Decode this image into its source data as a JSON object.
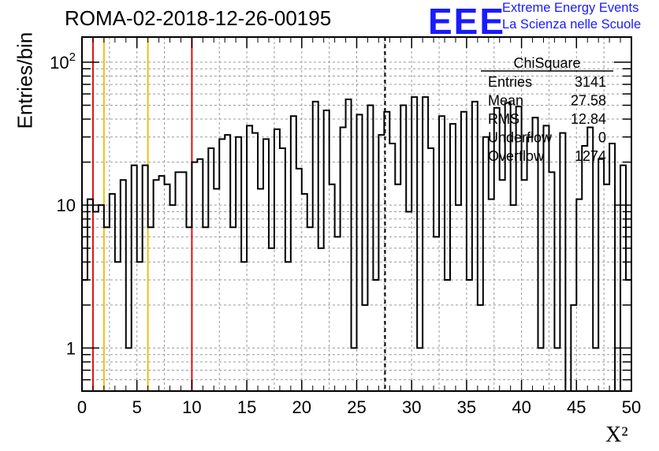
{
  "header": {
    "title": "ROMA-02-2018-12-26-00195",
    "logo_mark": "EEE",
    "logo_line1": "Extreme Energy Events",
    "logo_line2": "La Scienza nelle Scuole"
  },
  "stats": {
    "title": "ChiSquare",
    "rows": [
      {
        "label": "Entries",
        "value": "3141"
      },
      {
        "label": "Mean",
        "value": "27.58"
      },
      {
        "label": "RMS",
        "value": "12.84"
      },
      {
        "label": "Underflow",
        "value": "0"
      },
      {
        "label": "Overflow",
        "value": "1274"
      }
    ]
  },
  "colors": {
    "red_lines": "#e01010",
    "yellow_lines": "#f0c010",
    "histogram": "#000000",
    "logo": "#1a1aff"
  },
  "chart_data": {
    "type": "bar",
    "title": "ROMA-02-2018-12-26-00195",
    "xlabel": "X²",
    "ylabel": "Entries/bin",
    "yscale": "log",
    "xlim": [
      0,
      50
    ],
    "ylim": [
      0.5,
      150
    ],
    "x_ticks": [
      "0",
      "5",
      "10",
      "15",
      "20",
      "25",
      "30",
      "35",
      "40",
      "45",
      "50"
    ],
    "y_ticks": [
      {
        "value": 1,
        "label": "1"
      },
      {
        "value": 10,
        "label": "10"
      },
      {
        "value": 100,
        "label": "10²"
      }
    ],
    "grid": true,
    "bin_width": 0.5,
    "bin_start": 0,
    "values": [
      3,
      11,
      9,
      10,
      7,
      12,
      4,
      15,
      1,
      19,
      4,
      19,
      7,
      15,
      16,
      14,
      10,
      17,
      17,
      7,
      20,
      21,
      7,
      25,
      13,
      29,
      31,
      7,
      30,
      4,
      36,
      32,
      13,
      29,
      5,
      34,
      25,
      4,
      42,
      18,
      12,
      7,
      53,
      5,
      46,
      14,
      6,
      35,
      55,
      1,
      43,
      2,
      50,
      3,
      31,
      45,
      27,
      14,
      50,
      9,
      57,
      1,
      57,
      25,
      6,
      42,
      3,
      37,
      10,
      45,
      3,
      53,
      2,
      30,
      11,
      48,
      15,
      52,
      10,
      49,
      15,
      30,
      41,
      1,
      36,
      17,
      1,
      32,
      0,
      2,
      11,
      26,
      35,
      1,
      21,
      14,
      27,
      0,
      19,
      3
    ],
    "vertical_lines": [
      {
        "x": 1,
        "color": "red"
      },
      {
        "x": 2,
        "color": "yellow"
      },
      {
        "x": 6,
        "color": "yellow"
      },
      {
        "x": 10,
        "color": "red"
      },
      {
        "x": 27.58,
        "color": "black",
        "style": "dashed"
      }
    ]
  }
}
